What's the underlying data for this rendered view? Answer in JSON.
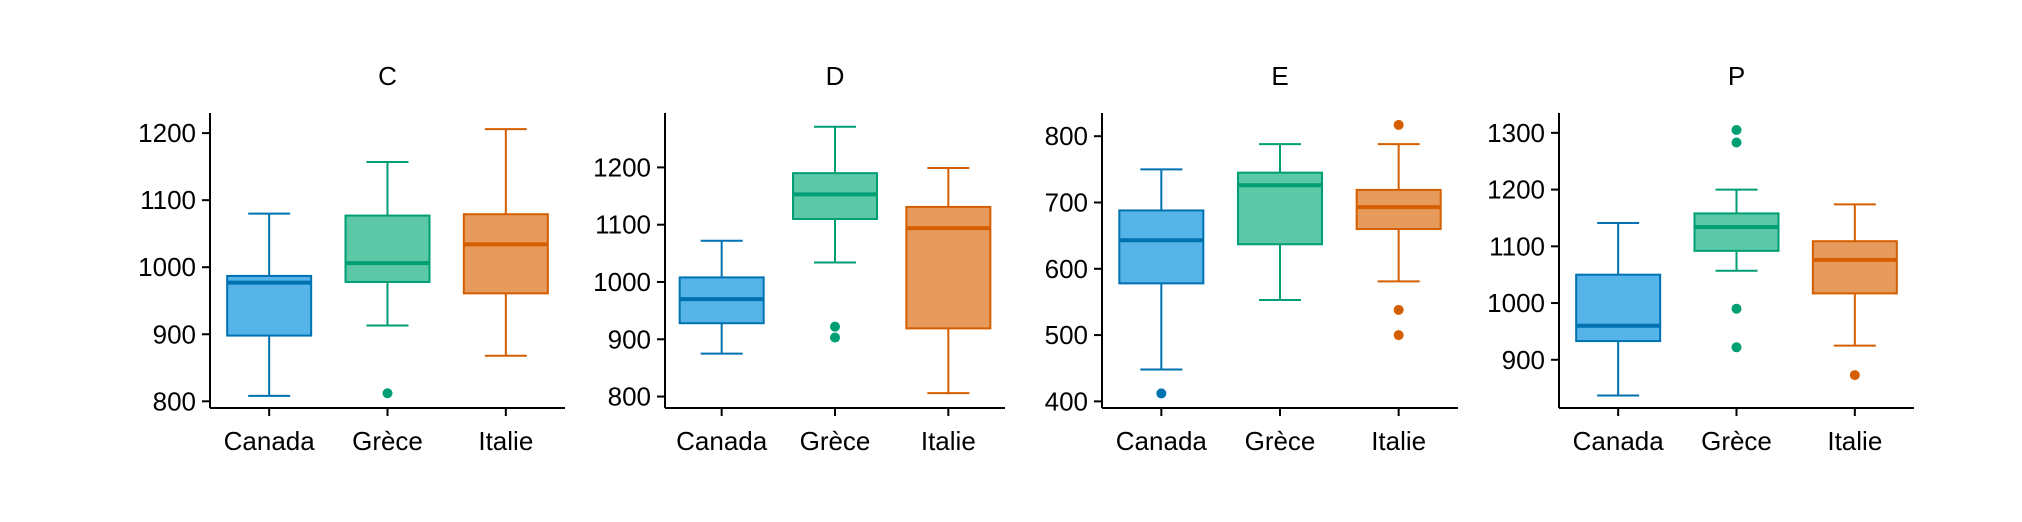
{
  "chart_data": [
    {
      "type": "box",
      "title": "C",
      "categories": [
        "Canada",
        "Grèce",
        "Italie"
      ],
      "colors": [
        "#0072B2",
        "#009E73",
        "#D55E00"
      ],
      "ylim": [
        790,
        1230
      ],
      "yticks": [
        800,
        900,
        1000,
        1100,
        1200
      ],
      "boxes": [
        {
          "whisker_low": 808,
          "q1": 898,
          "median": 977,
          "q3": 987,
          "whisker_high": 1080,
          "outliers": []
        },
        {
          "whisker_low": 913,
          "q1": 978,
          "median": 1006,
          "q3": 1077,
          "whisker_high": 1157,
          "outliers": [
            812
          ]
        },
        {
          "whisker_low": 868,
          "q1": 961,
          "median": 1034,
          "q3": 1079,
          "whisker_high": 1206,
          "outliers": []
        }
      ]
    },
    {
      "type": "box",
      "title": "D",
      "categories": [
        "Canada",
        "Grèce",
        "Italie"
      ],
      "colors": [
        "#0072B2",
        "#009E73",
        "#D55E00"
      ],
      "ylim": [
        780,
        1295
      ],
      "yticks": [
        800,
        900,
        1000,
        1100,
        1200
      ],
      "boxes": [
        {
          "whisker_low": 875,
          "q1": 928,
          "median": 970,
          "q3": 1008,
          "whisker_high": 1072,
          "outliers": []
        },
        {
          "whisker_low": 1034,
          "q1": 1110,
          "median": 1153,
          "q3": 1190,
          "whisker_high": 1271,
          "outliers": [
            922,
            903
          ]
        },
        {
          "whisker_low": 806,
          "q1": 919,
          "median": 1094,
          "q3": 1131,
          "whisker_high": 1199,
          "outliers": []
        }
      ]
    },
    {
      "type": "box",
      "title": "E",
      "categories": [
        "Canada",
        "Grèce",
        "Italie"
      ],
      "colors": [
        "#0072B2",
        "#009E73",
        "#D55E00"
      ],
      "ylim": [
        390,
        835
      ],
      "yticks": [
        400,
        500,
        600,
        700,
        800
      ],
      "boxes": [
        {
          "whisker_low": 448,
          "q1": 578,
          "median": 643,
          "q3": 688,
          "whisker_high": 750,
          "outliers": [
            412
          ]
        },
        {
          "whisker_low": 553,
          "q1": 637,
          "median": 726,
          "q3": 745,
          "whisker_high": 788,
          "outliers": []
        },
        {
          "whisker_low": 581,
          "q1": 660,
          "median": 693,
          "q3": 719,
          "whisker_high": 788,
          "outliers": [
            817,
            538,
            500
          ]
        }
      ]
    },
    {
      "type": "box",
      "title": "P",
      "categories": [
        "Canada",
        "Grèce",
        "Italie"
      ],
      "colors": [
        "#0072B2",
        "#009E73",
        "#D55E00"
      ],
      "ylim": [
        815,
        1335
      ],
      "yticks": [
        900,
        1000,
        1100,
        1200,
        1300
      ],
      "boxes": [
        {
          "whisker_low": 837,
          "q1": 933,
          "median": 960,
          "q3": 1050,
          "whisker_high": 1141,
          "outliers": []
        },
        {
          "whisker_low": 1057,
          "q1": 1092,
          "median": 1134,
          "q3": 1158,
          "whisker_high": 1200,
          "outliers": [
            1305,
            1283,
            990,
            922
          ]
        },
        {
          "whisker_low": 925,
          "q1": 1017,
          "median": 1076,
          "q3": 1109,
          "whisker_high": 1174,
          "outliers": [
            873
          ]
        }
      ]
    }
  ]
}
